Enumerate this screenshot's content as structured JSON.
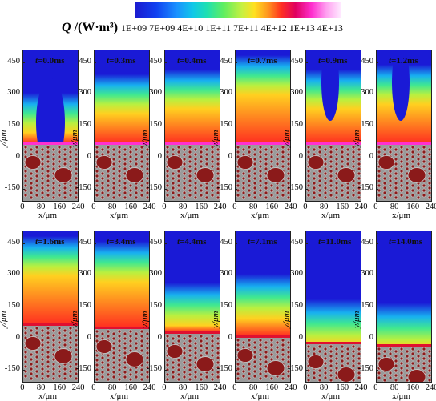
{
  "legend": {
    "symbol": "Q",
    "unit": " /(W·m³)",
    "ticks": [
      "1E+09",
      "7E+09",
      "4E+10",
      "1E+11",
      "7E+11",
      "4E+12",
      "1E+13",
      "4E+13"
    ]
  },
  "axes": {
    "ylabel": "y/μm",
    "yticks": [
      "450",
      "300",
      "150",
      "0",
      "-150"
    ],
    "xticks": [
      "0",
      "80",
      "160",
      "240"
    ],
    "xlabel": "x/μm"
  },
  "panels": [
    {
      "t_label": "t",
      "t_value": "=0.0ms"
    },
    {
      "t_label": "t",
      "t_value": "=0.3ms"
    },
    {
      "t_label": "t",
      "t_value": "=0.4ms"
    },
    {
      "t_label": "t",
      "t_value": "=0.7ms"
    },
    {
      "t_label": "t",
      "t_value": "=0.9ms"
    },
    {
      "t_label": "t",
      "t_value": "=1.2ms"
    },
    {
      "t_label": "t",
      "t_value": "=1.6ms"
    },
    {
      "t_label": "t",
      "t_value": "=3.4ms"
    },
    {
      "t_label": "t",
      "t_value": "=4.4ms"
    },
    {
      "t_label": "t",
      "t_value": "=7.1ms"
    },
    {
      "t_label": "t",
      "t_value": "=11.0ms"
    },
    {
      "t_label": "t",
      "t_value": "=14.0ms"
    }
  ],
  "colors": {
    "low": "#1a1ad6",
    "high": "#ff30d0",
    "particle": "#8b1a1a",
    "matrix": "#9a9a9a"
  }
}
